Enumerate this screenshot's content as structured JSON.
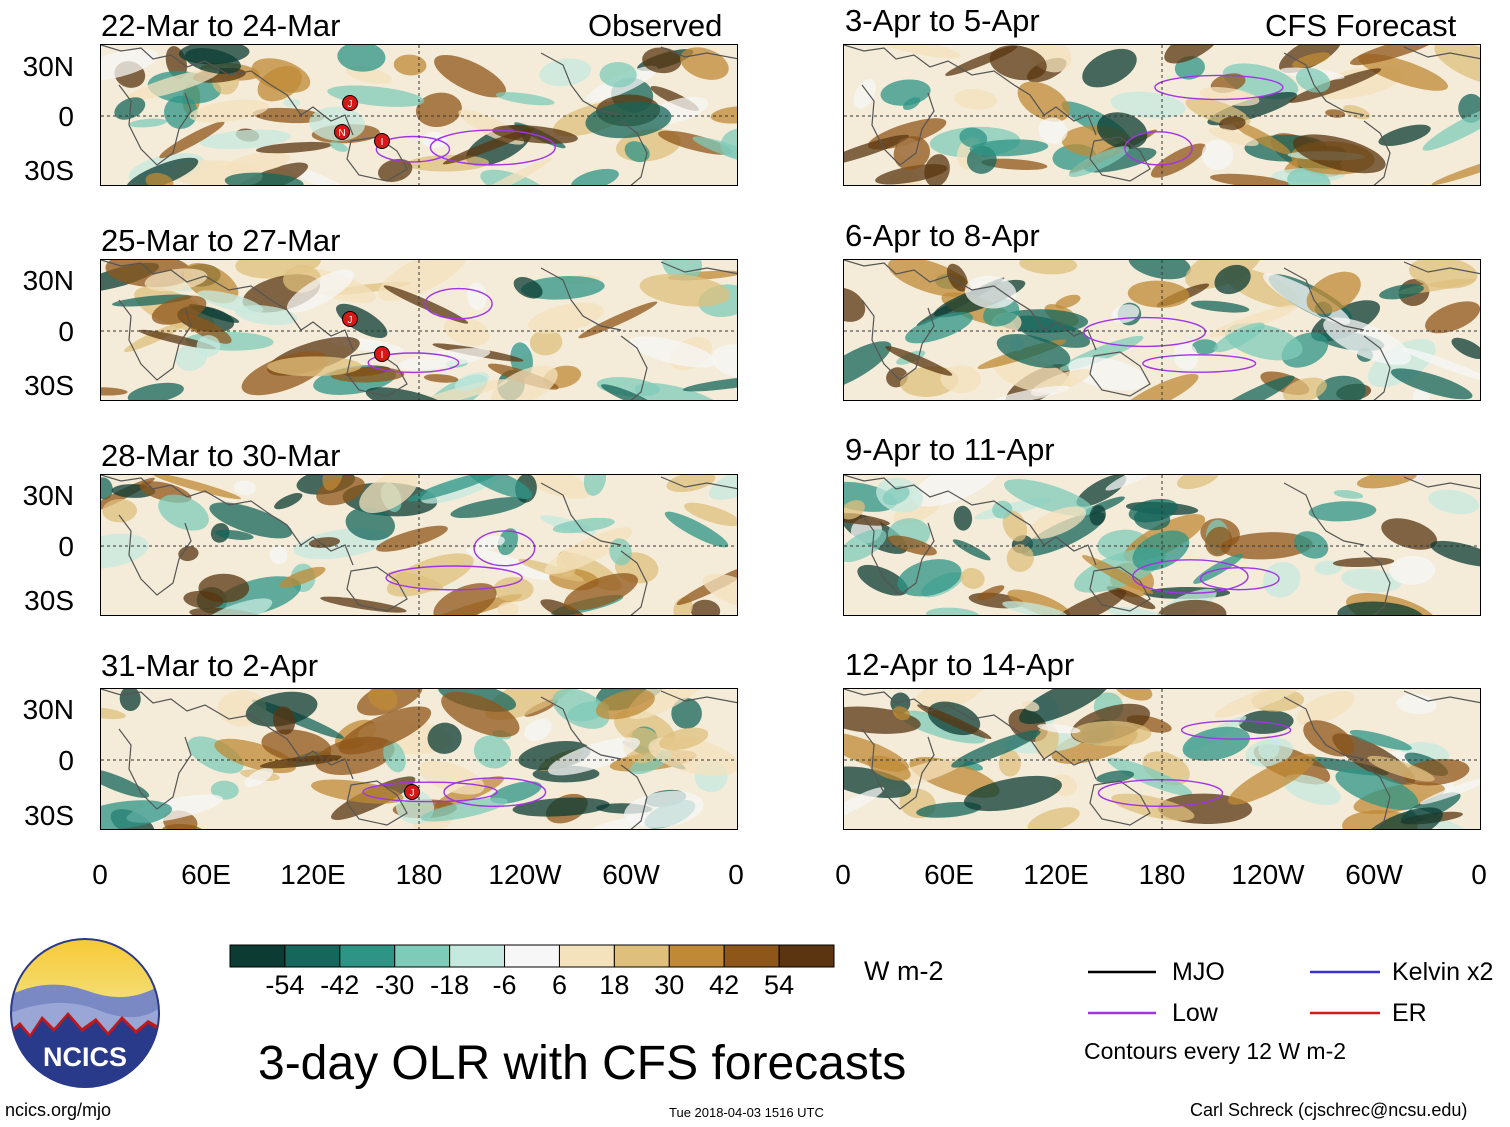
{
  "observed_label": "Observed",
  "forecast_label": "CFS Forecast",
  "lat_labels": [
    "30N",
    "0",
    "30S"
  ],
  "lon_labels": [
    "0",
    "60E",
    "120E",
    "180",
    "120W",
    "60W",
    "0"
  ],
  "panels_left": [
    {
      "title": "22-Mar to 24-Mar"
    },
    {
      "title": "25-Mar to 27-Mar"
    },
    {
      "title": "28-Mar to 30-Mar"
    },
    {
      "title": "31-Mar to 2-Apr"
    }
  ],
  "panels_right": [
    {
      "title": "3-Apr to 5-Apr"
    },
    {
      "title": "6-Apr to 8-Apr"
    },
    {
      "title": "9-Apr to 11-Apr"
    },
    {
      "title": "12-Apr to 14-Apr"
    }
  ],
  "colorbar": {
    "colors": [
      "#0b3b33",
      "#15665b",
      "#2e9485",
      "#7fcbb9",
      "#c5e9df",
      "#f7f7f7",
      "#f4e2bd",
      "#dfbf7c",
      "#bf8935",
      "#8f5619",
      "#5a3510"
    ],
    "labels": [
      "-54",
      "-42",
      "-30",
      "-18",
      "-6",
      "6",
      "18",
      "30",
      "42",
      "54"
    ],
    "units": "W m-2"
  },
  "legend": {
    "mjo": {
      "label": "MJO",
      "color": "#000000"
    },
    "kelvin": {
      "label": "Kelvin x2",
      "color": "#3a2fd0"
    },
    "low": {
      "label": "Low",
      "color": "#a035e6"
    },
    "er": {
      "label": "ER",
      "color": "#d81818"
    },
    "contours_note": "Contours every 12 W m-2"
  },
  "logo_text": "NCICS",
  "main_title": "3-day OLR with CFS forecasts",
  "site_url": "ncics.org/mjo",
  "timestamp": "Tue 2018-04-03 1516 UTC",
  "credit": "Carl Schreck (cjschrec@ncsu.edu)",
  "storm_markers": [
    {
      "panel": 0,
      "label": "J"
    },
    {
      "panel": 0,
      "label": "N"
    },
    {
      "panel": 0,
      "label": "I"
    },
    {
      "panel": 1,
      "label": "J"
    },
    {
      "panel": 1,
      "label": "I"
    },
    {
      "panel": 3,
      "label": "J"
    }
  ]
}
